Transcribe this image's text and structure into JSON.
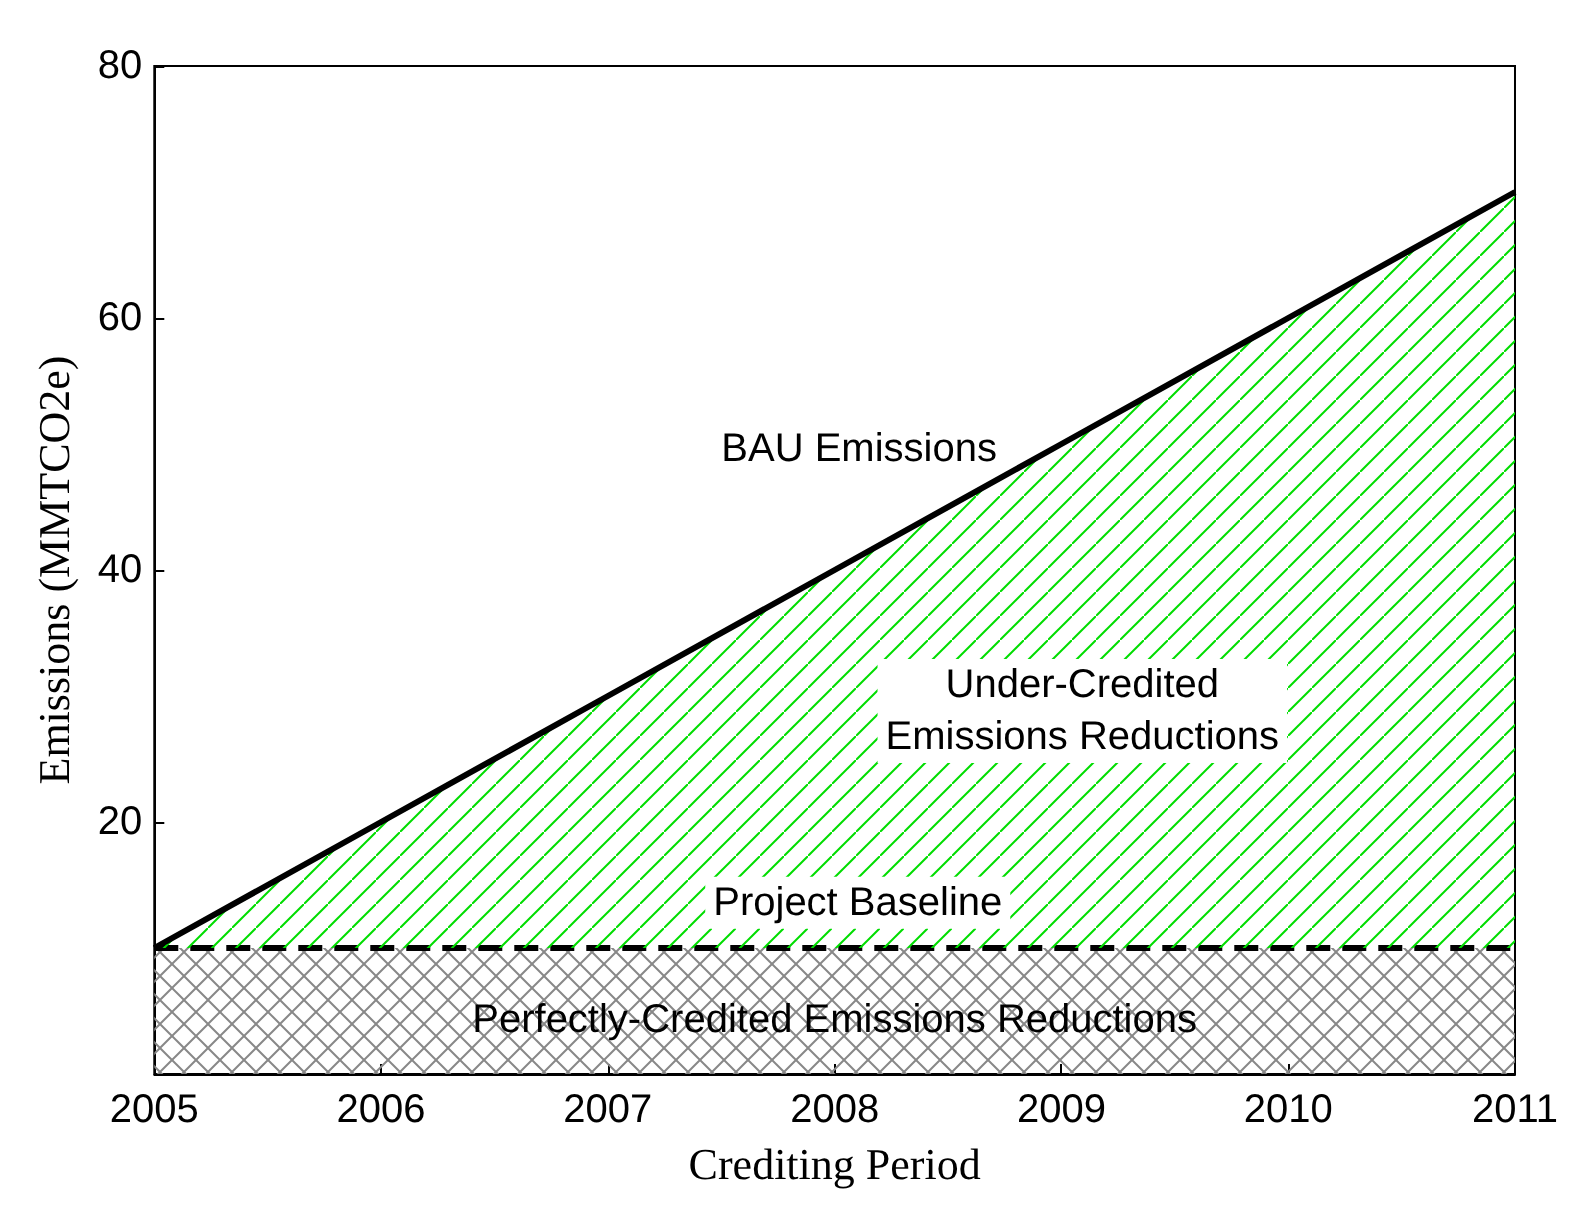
{
  "chart_data": {
    "type": "area",
    "stacked": true,
    "xlabel": "Crediting Period",
    "ylabel": "Emissions (MMTCO2e)",
    "categories": [
      "2005",
      "2006",
      "2007",
      "2008",
      "2009",
      "2010",
      "2011"
    ],
    "series": [
      {
        "color": "#888888",
        "values": [
          10,
          10,
          10,
          10,
          10,
          10,
          10
        ],
        "line_style": "dashed"
      },
      {
        "color": "#00dd00",
        "values": [
          0,
          10,
          20,
          30,
          40,
          50,
          60
        ],
        "line_style": "solid"
      }
    ],
    "ylim": [
      0,
      80
    ],
    "yticks": [
      {
        "value": 0,
        "label": null
      },
      20,
      40,
      60,
      80
    ],
    "grid": false,
    "marker": "none",
    "annotations": [
      "BAU Emissions",
      "Under-Credited\nEmissions Reductions",
      "Project Baseline",
      "Perfectly-Credited Emissions Reductions"
    ]
  }
}
